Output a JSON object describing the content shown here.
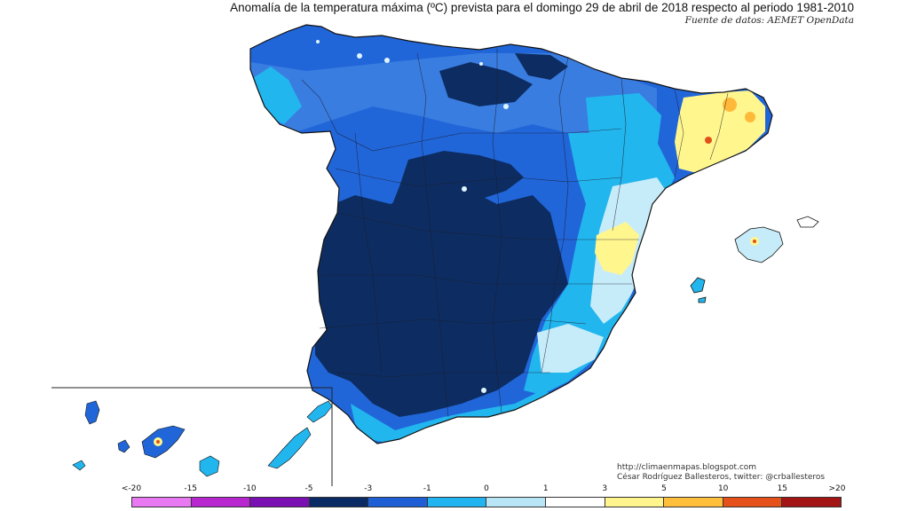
{
  "header": {
    "title": "Anomalía de la temperatura máxima (ºC) prevista para el domingo 29 de abril de 2018 respecto al periodo 1981-2010",
    "source": "Fuente de datos: AEMET OpenData"
  },
  "credits": {
    "blog": "http://climaenmapas.blogspot.com",
    "author": "César Rodríguez Ballesteros, twitter: @crballesteros"
  },
  "legend": {
    "labels": [
      "<-20",
      "-15",
      "-10",
      "-5",
      "-3",
      "-1",
      "0",
      "1",
      "3",
      "5",
      "10",
      "15",
      ">20"
    ],
    "colors": [
      "#e879f2",
      "#b826cf",
      "#7a0fb3",
      "#0a2a66",
      "#1f5fd6",
      "#22b4f0",
      "#b8e6f7",
      "#ffffff",
      "#fff58c",
      "#ffbf3b",
      "#e6501a",
      "#a31414",
      "#7a3d0d"
    ]
  },
  "map_colors": {
    "very_cold": "#0d2d62",
    "cold": "#2166d9",
    "cool": "#22b6ee",
    "slight_cool": "#c7ecf9",
    "neutral": "#ffffff",
    "warm": "#fff68e",
    "hot": "#ffb93a",
    "hotter": "#e0521c"
  }
}
